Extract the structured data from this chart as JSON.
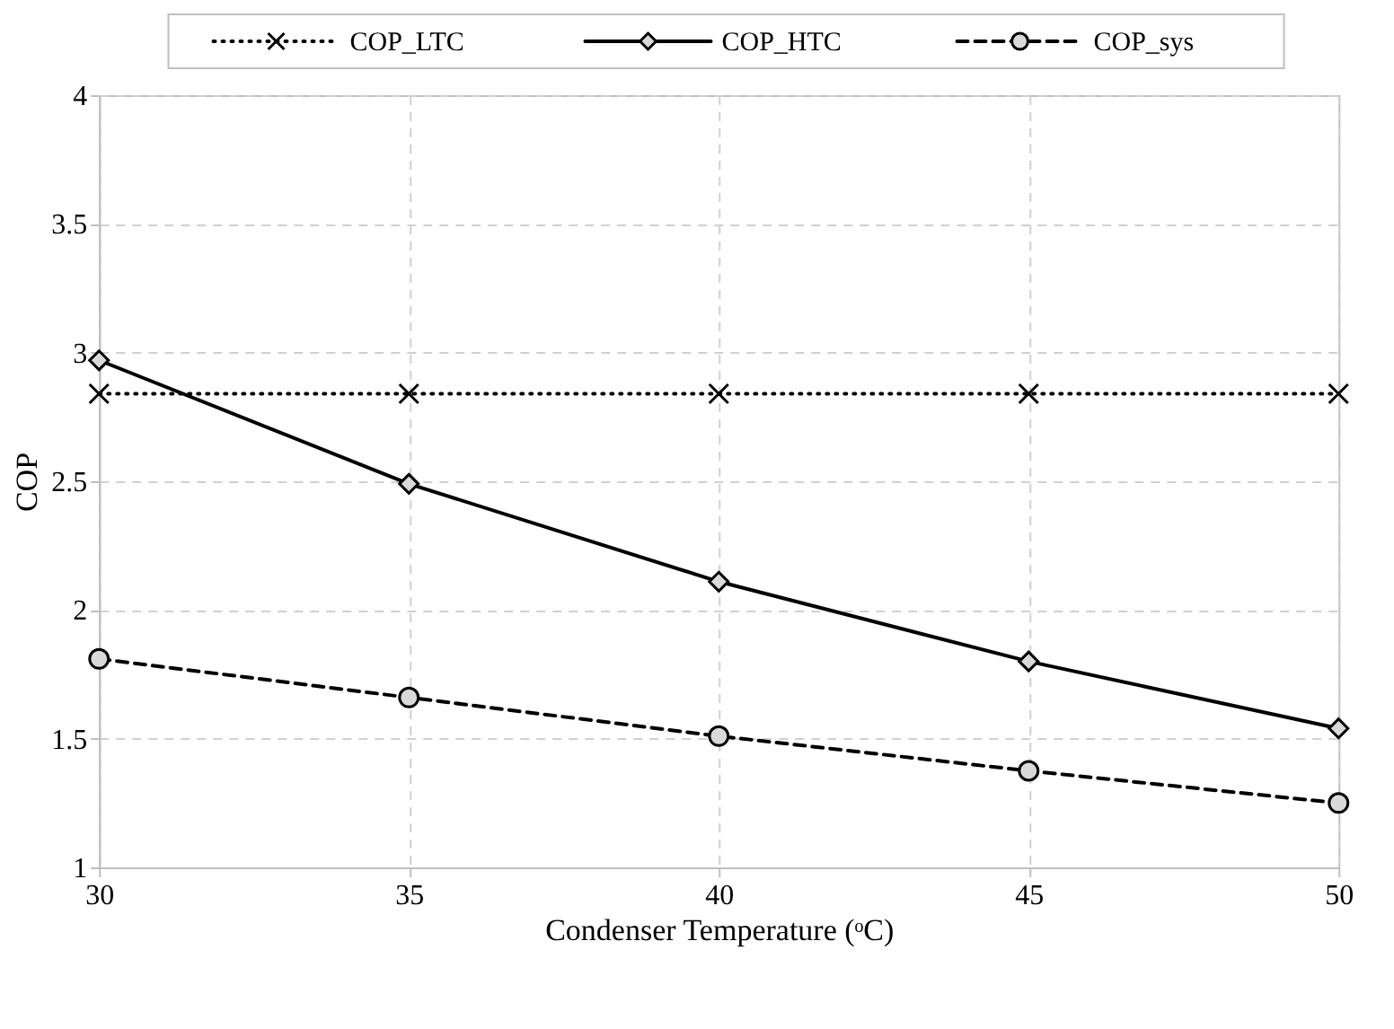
{
  "chart_data": {
    "type": "line",
    "xlabel": "Condenser Temperature (ᵒC)",
    "ylabel": "COP",
    "x": [
      30,
      35,
      40,
      45,
      50
    ],
    "series": [
      {
        "name": "COP_LTC",
        "color": "#000000",
        "marker": "cross",
        "line_style": "dotted",
        "values": [
          2.84,
          2.84,
          2.84,
          2.84,
          2.84
        ]
      },
      {
        "name": "COP_HTC",
        "color": "#000000",
        "marker": "diamond",
        "line_style": "solid",
        "values": [
          2.97,
          2.49,
          2.11,
          1.8,
          1.54
        ]
      },
      {
        "name": "COP_sys",
        "color": "#000000",
        "marker": "circle",
        "line_style": "dashed",
        "values": [
          1.81,
          1.66,
          1.51,
          1.375,
          1.25
        ]
      }
    ],
    "xlim": [
      30,
      50
    ],
    "xticks": [
      30,
      35,
      40,
      45,
      50
    ],
    "ylim": [
      1,
      4
    ],
    "yticks": [
      1,
      1.5,
      2,
      2.5,
      3,
      3.5,
      4
    ],
    "grid": true,
    "legend": "top"
  }
}
